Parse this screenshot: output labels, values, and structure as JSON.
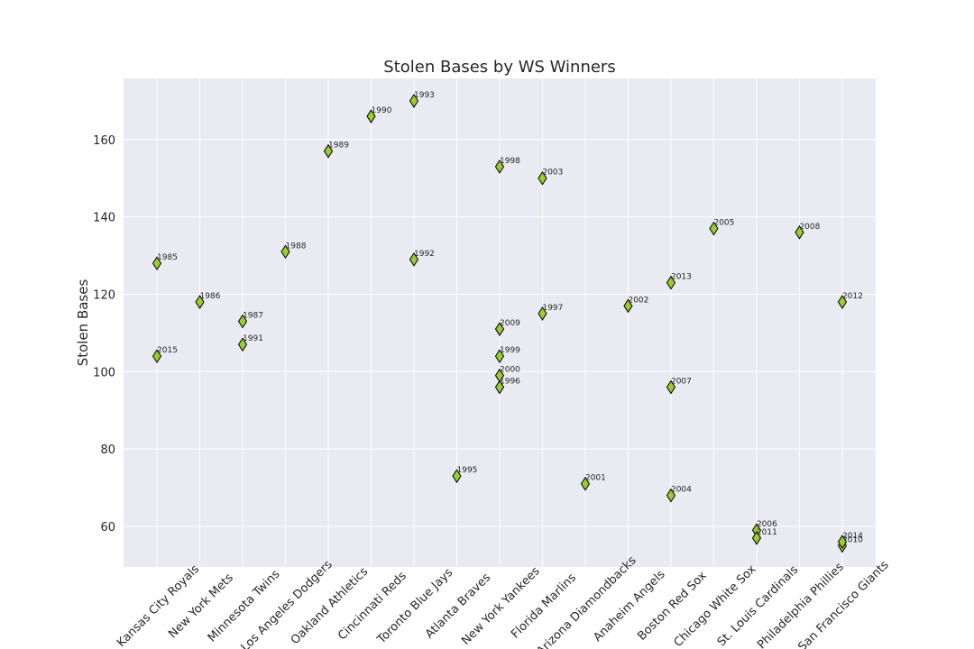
{
  "chart_data": {
    "type": "scatter",
    "title": "Stolen Bases by WS Winners",
    "ylabel": "Stolen Bases",
    "categories": [
      "Kansas City Royals",
      "New York Mets",
      "Minnesota Twins",
      "Los Angeles Dodgers",
      "Oakland Athletics",
      "Cincinnati Reds",
      "Toronto Blue Jays",
      "Atlanta Braves",
      "New York Yankees",
      "Florida Marlins",
      "Arizona Diamondbacks",
      "Anaheim Angels",
      "Boston Red Sox",
      "Chicago White Sox",
      "St. Louis Cardinals",
      "Philadelphia Phillies",
      "San Francisco Giants"
    ],
    "x": [
      "Kansas City Royals",
      "Kansas City Royals",
      "New York Mets",
      "Minnesota Twins",
      "Minnesota Twins",
      "Los Angeles Dodgers",
      "Oakland Athletics",
      "Cincinnati Reds",
      "Toronto Blue Jays",
      "Toronto Blue Jays",
      "Atlanta Braves",
      "New York Yankees",
      "New York Yankees",
      "New York Yankees",
      "New York Yankees",
      "New York Yankees",
      "Florida Marlins",
      "Florida Marlins",
      "Arizona Diamondbacks",
      "Anaheim Angels",
      "Boston Red Sox",
      "Boston Red Sox",
      "Boston Red Sox",
      "Chicago White Sox",
      "St. Louis Cardinals",
      "St. Louis Cardinals",
      "Philadelphia Phillies",
      "San Francisco Giants",
      "San Francisco Giants",
      "San Francisco Giants"
    ],
    "y": [
      128,
      104,
      118,
      113,
      107,
      131,
      157,
      166,
      129,
      170,
      73,
      96,
      153,
      104,
      99,
      111,
      115,
      150,
      71,
      117,
      68,
      96,
      123,
      137,
      59,
      57,
      136,
      55,
      118,
      56
    ],
    "point_labels": [
      "1985",
      "2015",
      "1986",
      "1987",
      "1991",
      "1988",
      "1989",
      "1990",
      "1992",
      "1993",
      "1995",
      "1996",
      "1998",
      "1999",
      "2000",
      "2009",
      "1997",
      "2003",
      "2001",
      "2002",
      "2004",
      "2007",
      "2013",
      "2005",
      "2006",
      "2011",
      "2008",
      "2010",
      "2012",
      "2014"
    ],
    "ylim": [
      49.5,
      175.8
    ],
    "yticks": [
      60,
      80,
      100,
      120,
      140,
      160
    ],
    "grid": true,
    "color": "#9acd32",
    "edgecolor": "#000000",
    "background": "#eaeaf2"
  }
}
